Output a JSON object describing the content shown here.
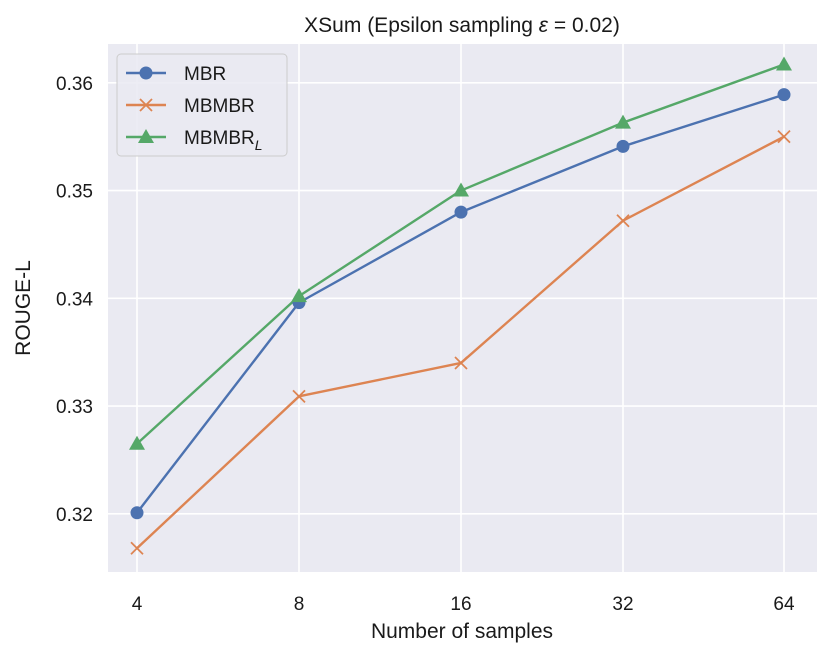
{
  "chart_data": {
    "type": "line",
    "title_main": "XSum (Epsilon sampling ",
    "title_symbol": "ε",
    "title_tail": " = 0.02)",
    "xlabel": "Number of samples",
    "ylabel": "ROUGE-L",
    "categories": [
      "4",
      "8",
      "16",
      "32",
      "64"
    ],
    "yticks": [
      "0.32",
      "0.33",
      "0.34",
      "0.35",
      "0.36"
    ],
    "ylim": [
      0.3146,
      0.3636
    ],
    "series": [
      {
        "name": "MBR",
        "name_sub": "",
        "color": "#4c72b0",
        "marker": "circle",
        "values": [
          0.3201,
          0.3396,
          0.348,
          0.3541,
          0.3589
        ]
      },
      {
        "name": "MBMBR",
        "name_sub": "",
        "color": "#dd8452",
        "marker": "x",
        "values": [
          0.3168,
          0.3309,
          0.334,
          0.3472,
          0.355
        ]
      },
      {
        "name": "MBMBR",
        "name_sub": "L",
        "color": "#55a868",
        "marker": "triangle",
        "values": [
          0.3265,
          0.3402,
          0.35,
          0.3563,
          0.3617
        ]
      }
    ],
    "legend_position": "upper-left",
    "grid": true,
    "background": "#eaeaf2"
  }
}
